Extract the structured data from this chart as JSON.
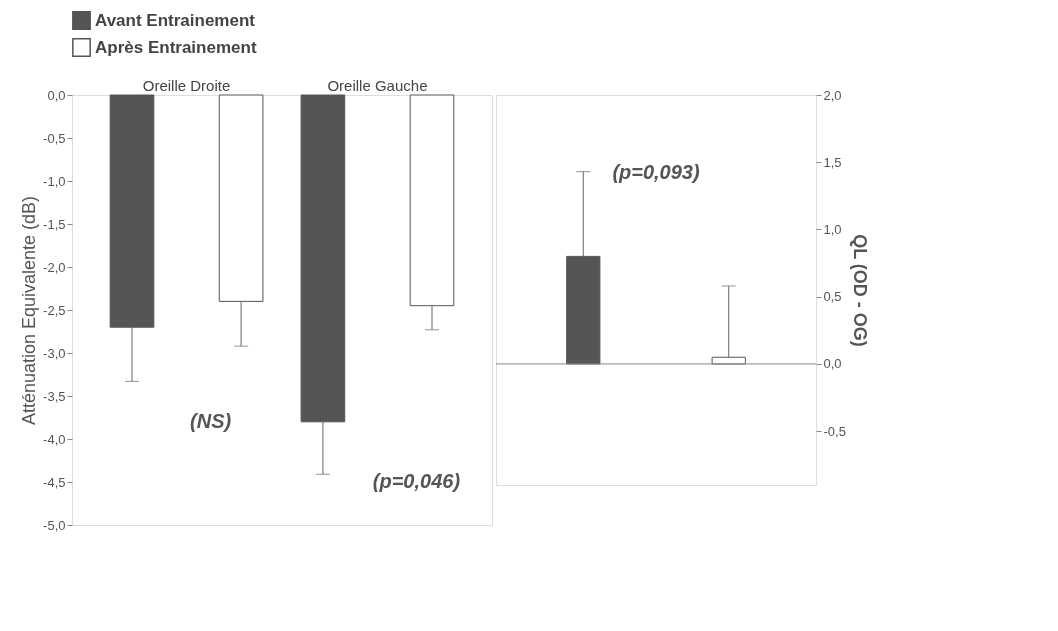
{
  "chart_data": [
    {
      "type": "bar",
      "categories": [
        "Oreille Droite",
        "Oreille Gauche"
      ],
      "ylabel": "Atténuation Equivalente (dB)",
      "series": [
        {
          "name": "Avant Entrainement",
          "color": "#555555",
          "values": [
            -2.7,
            -3.8
          ],
          "errors": [
            [
              -3.33,
              -2.7
            ],
            [
              -4.41,
              -3.8
            ]
          ]
        },
        {
          "name": "Après Entrainement",
          "color": "#ffffff",
          "values": [
            -2.4,
            -2.45
          ],
          "errors": [
            [
              -2.92,
              -2.4
            ],
            [
              -2.73,
              -2.45
            ]
          ]
        }
      ],
      "ylim": [
        -5,
        0
      ],
      "yticks": [
        {
          "value": 0,
          "label": "0,0"
        },
        {
          "value": -0.5,
          "label": "-0,5"
        },
        {
          "value": -1,
          "label": "-1,0"
        },
        {
          "value": -1.5,
          "label": "-1,5"
        },
        {
          "value": -2,
          "label": "-2,0"
        },
        {
          "value": -2.5,
          "label": "-2,5"
        },
        {
          "value": -3,
          "label": "-3,0"
        },
        {
          "value": -3.5,
          "label": "-3,5"
        },
        {
          "value": -4,
          "label": "-4,0"
        },
        {
          "value": -4.5,
          "label": "-4,5"
        },
        {
          "value": -5,
          "label": "-5,0"
        }
      ],
      "annotations": [
        "(NS)",
        "(p=0,046)"
      ],
      "legend": "top",
      "grid": false
    },
    {
      "type": "bar",
      "categories": [
        null,
        null
      ],
      "ylabel": "QL (OD - OG)",
      "series": [
        {
          "colors": [
            "#555555",
            "#ffffff"
          ],
          "values": [
            0.8,
            0.05
          ],
          "errors": [
            [
              0.8,
              1.43
            ],
            [
              0.05,
              0.58
            ]
          ]
        }
      ],
      "ylim": [
        -0.9,
        2.0
      ],
      "yticks": [
        {
          "value": -0.5,
          "label": "-0,5"
        },
        {
          "value": 0,
          "label": "0,0"
        },
        {
          "value": 0.5,
          "label": "0,5"
        },
        {
          "value": 1,
          "label": "1,0"
        },
        {
          "value": 1.5,
          "label": "1,5"
        },
        {
          "value": 2,
          "label": "2,0"
        }
      ],
      "ref_lines": [
        {
          "axis": "y",
          "value": 0,
          "color": "#888888"
        }
      ],
      "annotations": [
        "(p=0,093)"
      ],
      "grid": false
    }
  ]
}
